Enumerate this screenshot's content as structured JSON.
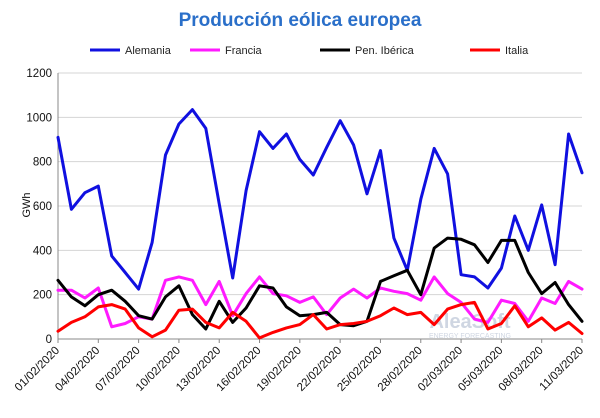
{
  "chart_data": {
    "type": "line",
    "title": "Producción eólica europea",
    "ylabel": "GWh",
    "ylim": [
      0,
      1200
    ],
    "yticks": [
      "0",
      "200",
      "400",
      "600",
      "800",
      "1000",
      "1200"
    ],
    "grid": "horizontal",
    "legend": "top",
    "x_ticks": [
      "01/02/2020",
      "04/02/2020",
      "07/02/2020",
      "10/02/2020",
      "13/02/2020",
      "16/02/2020",
      "19/02/2020",
      "22/02/2020",
      "25/02/2020",
      "28/02/2020",
      "02/03/2020",
      "05/03/2020",
      "08/03/2020",
      "11/03/2020"
    ],
    "series": [
      {
        "name": "Alemania",
        "color": "#1010e0",
        "values": [
          910,
          585,
          660,
          690,
          375,
          300,
          225,
          435,
          830,
          970,
          1035,
          950,
          610,
          275,
          670,
          935,
          860,
          925,
          810,
          740,
          865,
          985,
          875,
          655,
          850,
          455,
          310,
          630,
          860,
          745,
          290,
          280,
          230,
          320,
          555,
          400,
          605,
          335,
          925,
          750
        ]
      },
      {
        "name": "Francia",
        "color": "#ff1aff",
        "values": [
          220,
          220,
          185,
          230,
          55,
          70,
          100,
          90,
          265,
          280,
          265,
          155,
          260,
          105,
          205,
          280,
          205,
          195,
          165,
          190,
          110,
          185,
          225,
          185,
          230,
          215,
          205,
          175,
          280,
          205,
          165,
          90,
          75,
          175,
          160,
          80,
          185,
          160,
          260,
          225
        ]
      },
      {
        "name": "Pen. Ibérica",
        "color": "#000000",
        "values": [
          265,
          190,
          150,
          200,
          220,
          170,
          105,
          90,
          190,
          240,
          110,
          45,
          170,
          75,
          140,
          240,
          230,
          145,
          105,
          110,
          120,
          65,
          60,
          80,
          260,
          285,
          310,
          200,
          410,
          455,
          450,
          425,
          345,
          445,
          445,
          300,
          205,
          255,
          155,
          80
        ]
      },
      {
        "name": "Italia",
        "color": "#ff0000",
        "values": [
          35,
          75,
          100,
          145,
          155,
          135,
          50,
          10,
          40,
          130,
          135,
          75,
          50,
          120,
          80,
          5,
          30,
          50,
          65,
          110,
          45,
          65,
          70,
          80,
          105,
          140,
          110,
          120,
          65,
          135,
          155,
          165,
          45,
          70,
          150,
          55,
          95,
          40,
          75,
          25
        ]
      }
    ],
    "watermark": {
      "brand": "AleaSoft",
      "tagline": "ENERGY FORECASTING"
    }
  }
}
